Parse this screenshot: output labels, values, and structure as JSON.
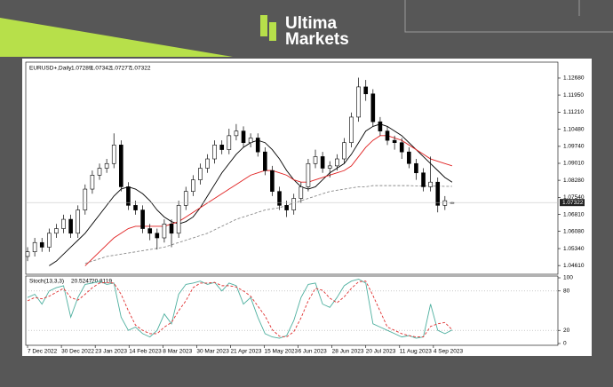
{
  "header": {
    "brand_line1": "Ultima",
    "brand_line2": "Markets"
  },
  "chart_data": [
    {
      "type": "candlestick",
      "symbol": "EURUSD+,Daily",
      "xlim": [
        -0.25,
        73.7
      ],
      "ylim": [
        1.0431,
        1.1329
      ],
      "yticks": [
        {
          "value": 1.1268,
          "label": "1.12680"
        },
        {
          "value": 1.1195,
          "label": "1.11950"
        },
        {
          "value": 1.1121,
          "label": "1.11210"
        },
        {
          "value": 1.1048,
          "label": "1.10480"
        },
        {
          "value": 1.0974,
          "label": "1.09740"
        },
        {
          "value": 1.0901,
          "label": "1.09010"
        },
        {
          "value": 1.0828,
          "label": "1.08280"
        },
        {
          "value": 1.0754,
          "label": "1.07540"
        },
        {
          "value": 1.0681,
          "label": "1.06810"
        },
        {
          "value": 1.0608,
          "label": "1.06080"
        },
        {
          "value": 1.0534,
          "label": "1.05340"
        },
        {
          "value": 1.0461,
          "label": "1.04610"
        }
      ],
      "open": [
        1.05,
        1.052,
        1.056,
        1.054,
        1.06,
        1.062,
        1.066,
        1.06,
        1.07,
        1.079,
        1.085,
        1.088,
        1.09,
        1.098,
        1.08,
        1.072,
        1.07,
        1.062,
        1.06,
        1.058,
        1.064,
        1.06,
        1.072,
        1.078,
        1.083,
        1.088,
        1.092,
        1.098,
        1.096,
        1.102,
        1.104,
        1.099,
        1.101,
        1.095,
        1.087,
        1.078,
        1.072,
        1.07,
        1.075,
        1.08,
        1.09,
        1.093,
        1.088,
        1.089,
        1.092,
        1.099,
        1.11,
        1.123,
        1.12,
        1.108,
        1.104,
        1.1,
        1.099,
        1.095,
        1.09,
        1.086,
        1.08,
        1.082,
        1.072,
        1.07289
      ],
      "high": [
        1.054,
        1.058,
        1.058,
        1.062,
        1.064,
        1.068,
        1.068,
        1.072,
        1.081,
        1.087,
        1.09,
        1.092,
        1.103,
        1.1,
        1.082,
        1.074,
        1.072,
        1.064,
        1.062,
        1.066,
        1.066,
        1.074,
        1.08,
        1.085,
        1.09,
        1.094,
        1.1,
        1.1,
        1.105,
        1.107,
        1.106,
        1.103,
        1.103,
        1.097,
        1.089,
        1.08,
        1.074,
        1.077,
        1.082,
        1.092,
        1.096,
        1.095,
        1.091,
        1.094,
        1.101,
        1.112,
        1.127,
        1.126,
        1.122,
        1.11,
        1.106,
        1.102,
        1.101,
        1.097,
        1.092,
        1.088,
        1.093,
        1.084,
        1.076,
        1.07342
      ],
      "low": [
        1.048,
        1.05,
        1.052,
        1.052,
        1.058,
        1.06,
        1.058,
        1.058,
        1.068,
        1.077,
        1.083,
        1.086,
        1.088,
        1.078,
        1.07,
        1.068,
        1.06,
        1.057,
        1.053,
        1.056,
        1.054,
        1.058,
        1.07,
        1.076,
        1.081,
        1.086,
        1.09,
        1.094,
        1.094,
        1.1,
        1.097,
        1.097,
        1.093,
        1.085,
        1.076,
        1.07,
        1.067,
        1.068,
        1.073,
        1.078,
        1.088,
        1.086,
        1.084,
        1.087,
        1.09,
        1.097,
        1.108,
        1.117,
        1.106,
        1.102,
        1.098,
        1.096,
        1.092,
        1.088,
        1.083,
        1.078,
        1.078,
        1.069,
        1.07,
        1.07277
      ],
      "close": [
        1.052,
        1.056,
        1.054,
        1.06,
        1.062,
        1.066,
        1.06,
        1.07,
        1.079,
        1.085,
        1.088,
        1.09,
        1.098,
        1.08,
        1.072,
        1.07,
        1.062,
        1.06,
        1.058,
        1.064,
        1.06,
        1.072,
        1.078,
        1.083,
        1.088,
        1.092,
        1.098,
        1.096,
        1.102,
        1.104,
        1.099,
        1.101,
        1.095,
        1.087,
        1.078,
        1.072,
        1.07,
        1.075,
        1.08,
        1.09,
        1.093,
        1.088,
        1.089,
        1.092,
        1.099,
        1.11,
        1.123,
        1.12,
        1.108,
        1.104,
        1.1,
        1.099,
        1.095,
        1.09,
        1.086,
        1.08,
        1.082,
        1.072,
        1.074,
        1.07322
      ],
      "lines": [
        {
          "color": "#000000",
          "dashed": false,
          "values": [
            null,
            null,
            null,
            1.046,
            1.048,
            1.051,
            1.054,
            1.057,
            1.06,
            1.064,
            1.068,
            1.072,
            1.076,
            1.079,
            1.08,
            1.079,
            1.077,
            1.074,
            1.07,
            1.067,
            1.065,
            1.064,
            1.065,
            1.067,
            1.071,
            1.076,
            1.081,
            1.086,
            1.09,
            1.094,
            1.097,
            1.099,
            1.1,
            1.099,
            1.096,
            1.092,
            1.087,
            1.083,
            1.08,
            1.079,
            1.08,
            1.083,
            1.086,
            1.088,
            1.09,
            1.094,
            1.099,
            1.104,
            1.106,
            1.107,
            1.106,
            1.104,
            1.102,
            1.099,
            1.096,
            1.093,
            1.09,
            1.087,
            1.084,
            1.082
          ]
        },
        {
          "color": "#e02020",
          "dashed": false,
          "values": [
            null,
            null,
            null,
            null,
            null,
            null,
            null,
            null,
            1.046,
            1.049,
            1.052,
            1.055,
            1.058,
            1.06,
            1.062,
            1.063,
            1.063,
            1.063,
            1.063,
            1.063,
            1.064,
            1.065,
            1.067,
            1.069,
            1.071,
            1.073,
            1.075,
            1.077,
            1.079,
            1.081,
            1.083,
            1.085,
            1.086,
            1.087,
            1.087,
            1.086,
            1.085,
            1.083,
            1.082,
            1.082,
            1.083,
            1.084,
            1.085,
            1.086,
            1.087,
            1.089,
            1.093,
            1.097,
            1.1,
            1.102,
            1.102,
            1.101,
            1.1,
            1.098,
            1.096,
            1.094,
            1.092,
            1.091,
            1.09,
            1.089
          ]
        },
        {
          "color": "#8a8a8a",
          "dashed": true,
          "values": [
            null,
            null,
            null,
            null,
            null,
            null,
            null,
            null,
            1.047,
            1.048,
            1.049,
            1.05,
            1.0505,
            1.051,
            1.0515,
            1.052,
            1.0525,
            1.053,
            1.0535,
            1.054,
            1.055,
            1.056,
            1.057,
            1.058,
            1.059,
            1.06,
            1.0615,
            1.063,
            1.0645,
            1.066,
            1.067,
            1.068,
            1.069,
            1.07,
            1.0705,
            1.071,
            1.072,
            1.073,
            1.074,
            1.075,
            1.076,
            1.077,
            1.078,
            1.0785,
            1.079,
            1.0795,
            1.08,
            1.08,
            1.0805,
            1.0805,
            1.0805,
            1.0805,
            1.0805,
            1.0805,
            1.0804,
            1.0804,
            1.0803,
            1.0803,
            1.0802,
            1.0802
          ]
        }
      ]
    },
    {
      "type": "line",
      "label": "Stoch(13,3,3)",
      "xlim": [
        -0.25,
        73.7
      ],
      "ylim": [
        0,
        100
      ],
      "yticks": [
        100,
        80,
        20,
        0
      ],
      "levels": [
        80,
        20
      ],
      "xticks": [
        {
          "value": 0,
          "label": "7 Dec 2022"
        },
        {
          "value": 4.7,
          "label": "30 Dec 2022"
        },
        {
          "value": 9.4,
          "label": "23 Jan 2023"
        },
        {
          "value": 14.1,
          "label": "14 Feb 2023"
        },
        {
          "value": 18.8,
          "label": "8 Mar 2023"
        },
        {
          "value": 23.5,
          "label": "30 Mar 2023"
        },
        {
          "value": 28.2,
          "label": "21 Apr 2023"
        },
        {
          "value": 32.9,
          "label": "15 May 2023"
        },
        {
          "value": 37.6,
          "label": "6 Jun 2023"
        },
        {
          "value": 42.3,
          "label": "28 Jun 2023"
        },
        {
          "value": 47,
          "label": "20 Jul 2023"
        },
        {
          "value": 51.7,
          "label": "11 Aug 2023"
        },
        {
          "value": 56.4,
          "label": "4 Sep 2023"
        }
      ],
      "lines": [
        {
          "color": "#4fb0a0",
          "dashed": false,
          "values": [
            70,
            75,
            60,
            80,
            85,
            88,
            40,
            70,
            90,
            92,
            95,
            90,
            92,
            40,
            20,
            25,
            15,
            10,
            20,
            45,
            30,
            75,
            90,
            92,
            95,
            90,
            93,
            80,
            92,
            88,
            60,
            70,
            40,
            15,
            10,
            8,
            12,
            35,
            70,
            90,
            92,
            60,
            55,
            70,
            88,
            95,
            98,
            92,
            30,
            25,
            20,
            15,
            10,
            12,
            8,
            10,
            60,
            20,
            15,
            20.5247
          ]
        },
        {
          "color": "#e03030",
          "dashed": true,
          "values": [
            65,
            70,
            68,
            72,
            78,
            84,
            70,
            66,
            75,
            85,
            92,
            93,
            92,
            75,
            50,
            28,
            20,
            15,
            15,
            25,
            32,
            50,
            65,
            85,
            92,
            92,
            93,
            88,
            88,
            86,
            80,
            72,
            57,
            42,
            21,
            11,
            10,
            18,
            39,
            65,
            84,
            81,
            69,
            62,
            71,
            84,
            94,
            95,
            73,
            49,
            25,
            20,
            15,
            12,
            10,
            10,
            26,
            30,
            32,
            20.8119
          ]
        }
      ]
    }
  ]
}
